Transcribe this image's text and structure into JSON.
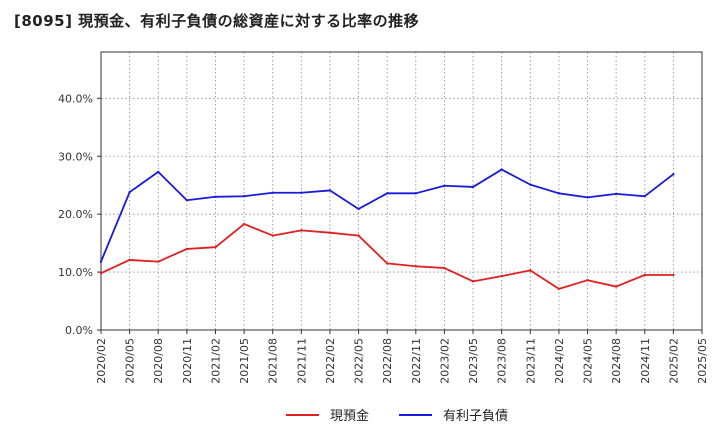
{
  "chart_data": {
    "type": "line",
    "title": "[8095]  現預金、有利子負債の総資産に対する比率の推移",
    "xlabel": "",
    "ylabel": "",
    "ylim": [
      0,
      48
    ],
    "yticks": [
      0,
      10,
      20,
      30,
      40
    ],
    "ytick_labels": [
      "0.0%",
      "10.0%",
      "20.0%",
      "30.0%",
      "40.0%"
    ],
    "x": [
      "2020/02",
      "2020/05",
      "2020/08",
      "2020/11",
      "2021/02",
      "2021/05",
      "2021/08",
      "2021/11",
      "2022/02",
      "2022/05",
      "2022/08",
      "2022/11",
      "2023/02",
      "2023/05",
      "2023/08",
      "2023/11",
      "2024/02",
      "2024/05",
      "2024/08",
      "2024/11",
      "2025/02",
      "2025/05"
    ],
    "series": [
      {
        "name": "現預金",
        "color": "#e02020",
        "values": [
          9.8,
          12.1,
          11.8,
          14.0,
          14.3,
          18.3,
          16.3,
          17.2,
          16.8,
          16.3,
          11.5,
          11.0,
          10.7,
          8.4,
          9.3,
          10.3,
          7.1,
          8.6,
          7.5,
          9.5,
          9.5,
          null
        ]
      },
      {
        "name": "有利子負債",
        "color": "#1a1adc",
        "values": [
          11.8,
          23.8,
          27.3,
          22.4,
          23.0,
          23.1,
          23.7,
          23.7,
          24.1,
          20.9,
          23.6,
          23.6,
          24.9,
          24.7,
          27.7,
          25.1,
          23.6,
          22.9,
          23.5,
          23.1,
          26.9,
          null
        ]
      }
    ],
    "legend_position": "bottom-center",
    "grid": true
  }
}
